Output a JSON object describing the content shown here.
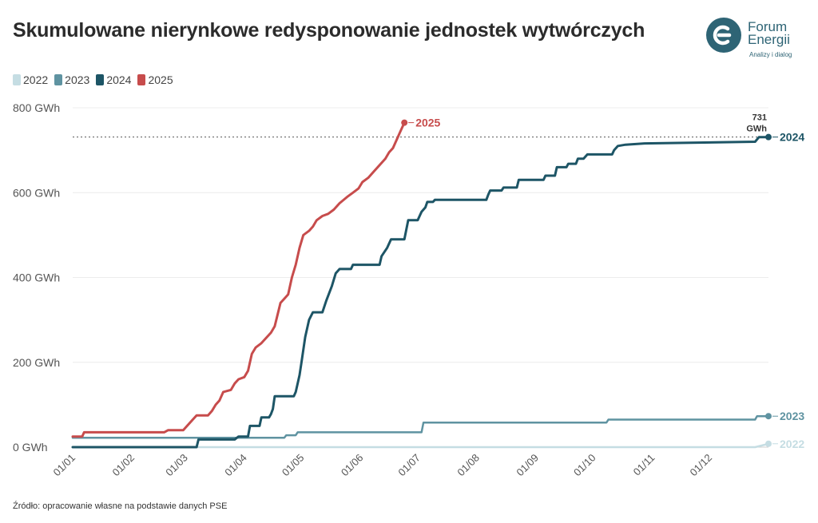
{
  "title": "Skumulowane nierynkowe redysponowanie jednostek wytwórczych",
  "logo": {
    "line1": "Forum",
    "line2": "Energii",
    "tagline": "Analizy i dialog"
  },
  "source": "Źródło: opracowanie własne na podstawie danych PSE",
  "colors": {
    "2022": "#c5dde3",
    "2023": "#5f93a1",
    "2024": "#1d5566",
    "2025": "#c74c4c"
  },
  "chart_data": {
    "type": "line",
    "ylim": [
      0,
      800
    ],
    "xlim": [
      0,
      365
    ],
    "y_ticks": [
      {
        "value": 0,
        "label": "0 GWh"
      },
      {
        "value": 200,
        "label": "200 GWh"
      },
      {
        "value": 400,
        "label": "400 GWh"
      },
      {
        "value": 600,
        "label": "600 GWh"
      },
      {
        "value": 800,
        "label": "800 GWh"
      }
    ],
    "x_ticks": [
      {
        "day": 0,
        "label": "01/01"
      },
      {
        "day": 31,
        "label": "01/02"
      },
      {
        "day": 59,
        "label": "01/03"
      },
      {
        "day": 90,
        "label": "01/04"
      },
      {
        "day": 120,
        "label": "01/05"
      },
      {
        "day": 151,
        "label": "01/06"
      },
      {
        "day": 181,
        "label": "01/07"
      },
      {
        "day": 212,
        "label": "01/08"
      },
      {
        "day": 243,
        "label": "01/09"
      },
      {
        "day": 273,
        "label": "01/10"
      },
      {
        "day": 304,
        "label": "01/11"
      },
      {
        "day": 334,
        "label": "01/12"
      }
    ],
    "reference_line": {
      "value": 731,
      "label_top": "731",
      "label_bottom": "GWh"
    },
    "series": [
      {
        "name": "2022",
        "end_label": "2022",
        "points": [
          [
            0,
            0
          ],
          [
            358,
            0
          ],
          [
            365,
            8
          ]
        ]
      },
      {
        "name": "2023",
        "end_label": "2023",
        "points": [
          [
            0,
            22
          ],
          [
            111,
            22
          ],
          [
            112,
            28
          ],
          [
            117,
            28
          ],
          [
            118,
            35
          ],
          [
            183,
            35
          ],
          [
            184,
            58
          ],
          [
            280,
            58
          ],
          [
            281,
            65
          ],
          [
            358,
            65
          ],
          [
            359,
            73
          ],
          [
            365,
            73
          ]
        ]
      },
      {
        "name": "2024",
        "end_label": "2024",
        "points": [
          [
            0,
            0
          ],
          [
            65,
            0
          ],
          [
            66,
            18
          ],
          [
            85,
            18
          ],
          [
            87,
            25
          ],
          [
            92,
            25
          ],
          [
            93,
            50
          ],
          [
            98,
            50
          ],
          [
            99,
            70
          ],
          [
            103,
            70
          ],
          [
            104,
            78
          ],
          [
            105,
            90
          ],
          [
            106,
            120
          ],
          [
            116,
            120
          ],
          [
            117,
            130
          ],
          [
            119,
            170
          ],
          [
            120,
            200
          ],
          [
            122,
            260
          ],
          [
            124,
            300
          ],
          [
            126,
            318
          ],
          [
            131,
            318
          ],
          [
            133,
            345
          ],
          [
            136,
            380
          ],
          [
            138,
            410
          ],
          [
            140,
            420
          ],
          [
            146,
            420
          ],
          [
            147,
            430
          ],
          [
            161,
            430
          ],
          [
            162,
            450
          ],
          [
            165,
            470
          ],
          [
            167,
            490
          ],
          [
            174,
            490
          ],
          [
            176,
            535
          ],
          [
            181,
            535
          ],
          [
            183,
            555
          ],
          [
            185,
            565
          ],
          [
            186,
            578
          ],
          [
            189,
            578
          ],
          [
            190,
            583
          ],
          [
            217,
            583
          ],
          [
            218,
            595
          ],
          [
            219,
            605
          ],
          [
            225,
            605
          ],
          [
            226,
            612
          ],
          [
            233,
            612
          ],
          [
            234,
            630
          ],
          [
            247,
            630
          ],
          [
            248,
            640
          ],
          [
            253,
            640
          ],
          [
            254,
            660
          ],
          [
            259,
            660
          ],
          [
            260,
            668
          ],
          [
            264,
            668
          ],
          [
            265,
            680
          ],
          [
            268,
            680
          ],
          [
            270,
            690
          ],
          [
            283,
            690
          ],
          [
            284,
            700
          ],
          [
            286,
            710
          ],
          [
            290,
            713
          ],
          [
            300,
            716
          ],
          [
            358,
            720
          ],
          [
            360,
            731
          ],
          [
            365,
            731
          ]
        ]
      },
      {
        "name": "2025",
        "end_label": "2025",
        "points": [
          [
            0,
            25
          ],
          [
            5,
            25
          ],
          [
            6,
            35
          ],
          [
            48,
            35
          ],
          [
            50,
            40
          ],
          [
            58,
            40
          ],
          [
            60,
            50
          ],
          [
            63,
            65
          ],
          [
            65,
            75
          ],
          [
            71,
            75
          ],
          [
            73,
            85
          ],
          [
            75,
            100
          ],
          [
            77,
            110
          ],
          [
            79,
            130
          ],
          [
            83,
            135
          ],
          [
            85,
            150
          ],
          [
            87,
            160
          ],
          [
            90,
            165
          ],
          [
            92,
            180
          ],
          [
            94,
            220
          ],
          [
            96,
            235
          ],
          [
            99,
            245
          ],
          [
            101,
            255
          ],
          [
            104,
            270
          ],
          [
            106,
            285
          ],
          [
            109,
            340
          ],
          [
            111,
            350
          ],
          [
            113,
            360
          ],
          [
            115,
            400
          ],
          [
            117,
            430
          ],
          [
            119,
            470
          ],
          [
            121,
            500
          ],
          [
            124,
            510
          ],
          [
            126,
            520
          ],
          [
            128,
            535
          ],
          [
            131,
            545
          ],
          [
            134,
            550
          ],
          [
            137,
            560
          ],
          [
            140,
            575
          ],
          [
            144,
            590
          ],
          [
            147,
            600
          ],
          [
            150,
            610
          ],
          [
            152,
            625
          ],
          [
            155,
            635
          ],
          [
            158,
            650
          ],
          [
            161,
            665
          ],
          [
            164,
            680
          ],
          [
            166,
            695
          ],
          [
            168,
            705
          ],
          [
            170,
            725
          ],
          [
            172,
            745
          ],
          [
            174,
            765
          ]
        ]
      }
    ]
  }
}
